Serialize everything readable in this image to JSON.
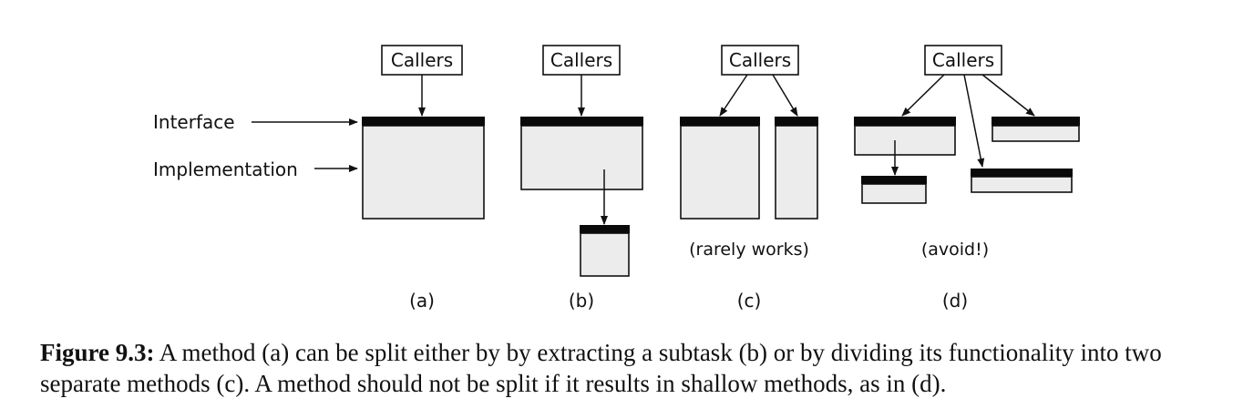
{
  "diagram": {
    "side_labels": {
      "interface": "Interface",
      "implementation": "Implementation"
    },
    "callers_label": "Callers",
    "panels": [
      {
        "id": "a",
        "letter": "(a)",
        "note": ""
      },
      {
        "id": "b",
        "letter": "(b)",
        "note": ""
      },
      {
        "id": "c",
        "letter": "(c)",
        "note": "(rarely works)"
      },
      {
        "id": "d",
        "letter": "(d)",
        "note": "(avoid!)"
      }
    ]
  },
  "caption": {
    "label": "Figure 9.3:",
    "text": " A method (a) can be split either by by extracting a subtask (b) or by dividing its functionality into two separate methods (c). A method should not be split if it results in shallow methods, as in (d)."
  }
}
